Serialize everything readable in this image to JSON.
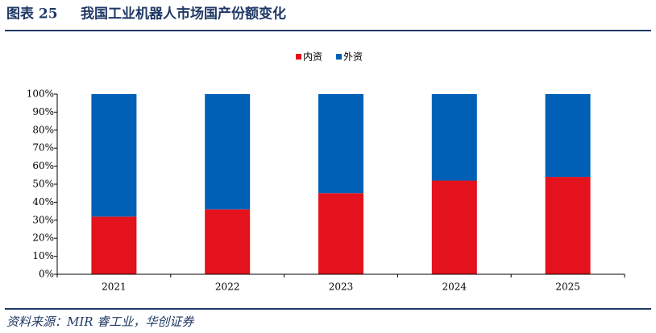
{
  "header": {
    "label": "图表 25",
    "title": "我国工业机器人市场国产份额变化"
  },
  "chart_data": {
    "type": "stacked_bar",
    "categories": [
      "2021",
      "2022",
      "2023",
      "2024",
      "2025"
    ],
    "series": [
      {
        "name": "内资",
        "color": "#e3121c",
        "values": [
          32,
          36,
          45,
          52,
          54
        ]
      },
      {
        "name": "外资",
        "color": "#0060b6",
        "values": [
          68,
          64,
          55,
          48,
          46
        ]
      }
    ],
    "ylim": [
      0,
      100
    ],
    "yticks": [
      {
        "value": 0,
        "label": "0%"
      },
      {
        "value": 10,
        "label": "10%"
      },
      {
        "value": 20,
        "label": "20%"
      },
      {
        "value": 30,
        "label": "30%"
      },
      {
        "value": 40,
        "label": "40%"
      },
      {
        "value": 50,
        "label": "50%"
      },
      {
        "value": 60,
        "label": "60%"
      },
      {
        "value": 70,
        "label": "70%"
      },
      {
        "value": 80,
        "label": "80%"
      },
      {
        "value": 90,
        "label": "90%"
      },
      {
        "value": 100,
        "label": "100%"
      }
    ],
    "legend": "top"
  },
  "footer": {
    "source": "资料来源：MIR 睿工业，华创证券"
  }
}
